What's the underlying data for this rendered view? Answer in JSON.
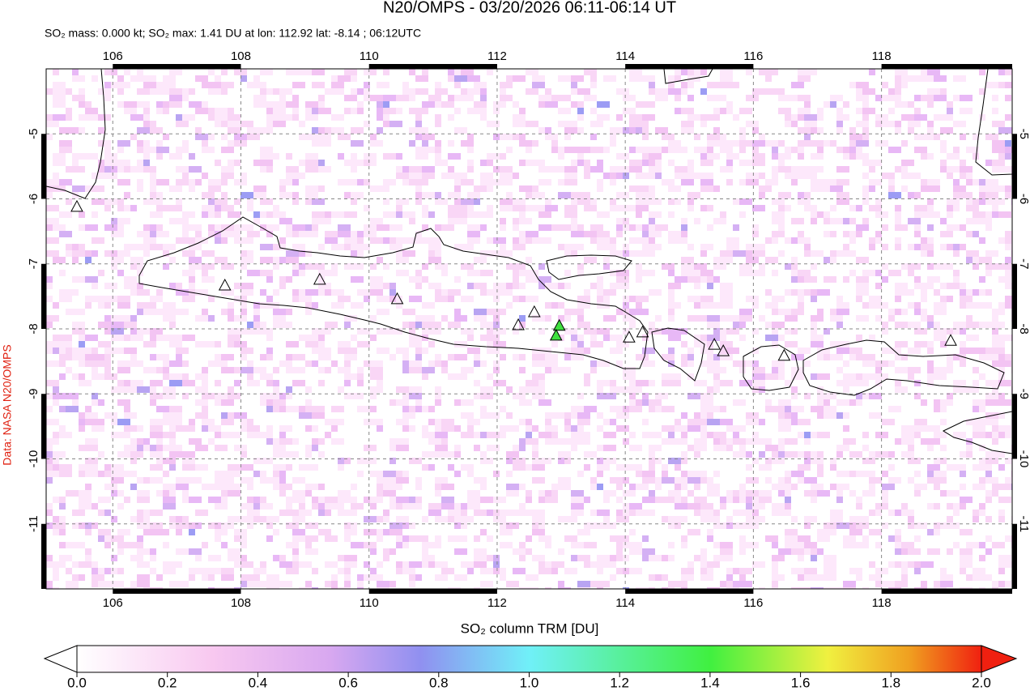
{
  "title": "N20/OMPS - 03/20/2026 06:11-06:14 UT",
  "subtitle": "SO₂ mass: 0.000 kt; SO₂ max: 1.41 DU at lon: 112.92 lat: -8.14 ; 06:12UTC",
  "side_label": "Data: NASA N20/OMPS",
  "map": {
    "xlim": [
      104.96,
      120.04
    ],
    "ylim": [
      -12,
      -4
    ],
    "xticks": [
      106,
      108,
      110,
      112,
      114,
      116,
      118
    ],
    "yticks": [
      -5,
      -6,
      -7,
      -8,
      -9,
      -10,
      -11
    ],
    "volcanoes": [
      [
        105.44,
        -6.13
      ],
      [
        107.75,
        -7.34
      ],
      [
        109.23,
        -7.25
      ],
      [
        110.44,
        -7.55
      ],
      [
        112.33,
        -7.95
      ],
      [
        112.58,
        -7.75
      ],
      [
        112.97,
        -7.96
      ],
      [
        112.92,
        -8.11
      ],
      [
        114.06,
        -8.14
      ],
      [
        114.27,
        -8.06
      ],
      [
        115.39,
        -8.25
      ],
      [
        115.53,
        -8.35
      ],
      [
        116.48,
        -8.42
      ],
      [
        119.08,
        -8.19
      ]
    ]
  },
  "colorbar": {
    "label": "SO₂ column TRM [DU]",
    "lim": [
      0,
      2
    ],
    "ticks": [
      {
        "value": 0,
        "label": "0.0"
      },
      {
        "value": 0.2,
        "label": "0.2"
      },
      {
        "value": 0.4,
        "label": "0.4"
      },
      {
        "value": 0.6,
        "label": "0.6"
      },
      {
        "value": 0.8,
        "label": "0.8"
      },
      {
        "value": 1,
        "label": "1.0"
      },
      {
        "value": 1.2,
        "label": "1.2"
      },
      {
        "value": 1.4,
        "label": "1.4"
      },
      {
        "value": 1.6,
        "label": "1.6"
      },
      {
        "value": 1.8,
        "label": "1.8"
      },
      {
        "value": 2,
        "label": "2.0"
      }
    ]
  }
}
